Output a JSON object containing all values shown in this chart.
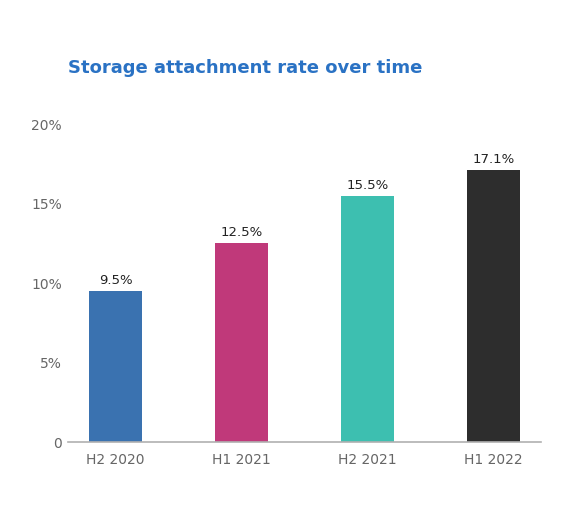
{
  "title": "Storage attachment rate over time",
  "categories": [
    "H2 2020",
    "H1 2021",
    "H2 2021",
    "H1 2022"
  ],
  "values": [
    9.5,
    12.5,
    15.5,
    17.1
  ],
  "bar_colors": [
    "#3a72b0",
    "#c0397a",
    "#3dbfb0",
    "#2d2d2d"
  ],
  "title_color": "#2a72c4",
  "title_fontsize": 13,
  "label_fontsize": 9.5,
  "tick_fontsize": 10,
  "ylim": [
    0,
    22
  ],
  "yticks": [
    0,
    5,
    10,
    15,
    20
  ],
  "background_color": "#ffffff",
  "bar_width": 0.42,
  "bottom_spine_color": "#b0b0b0",
  "tick_color": "#666666"
}
